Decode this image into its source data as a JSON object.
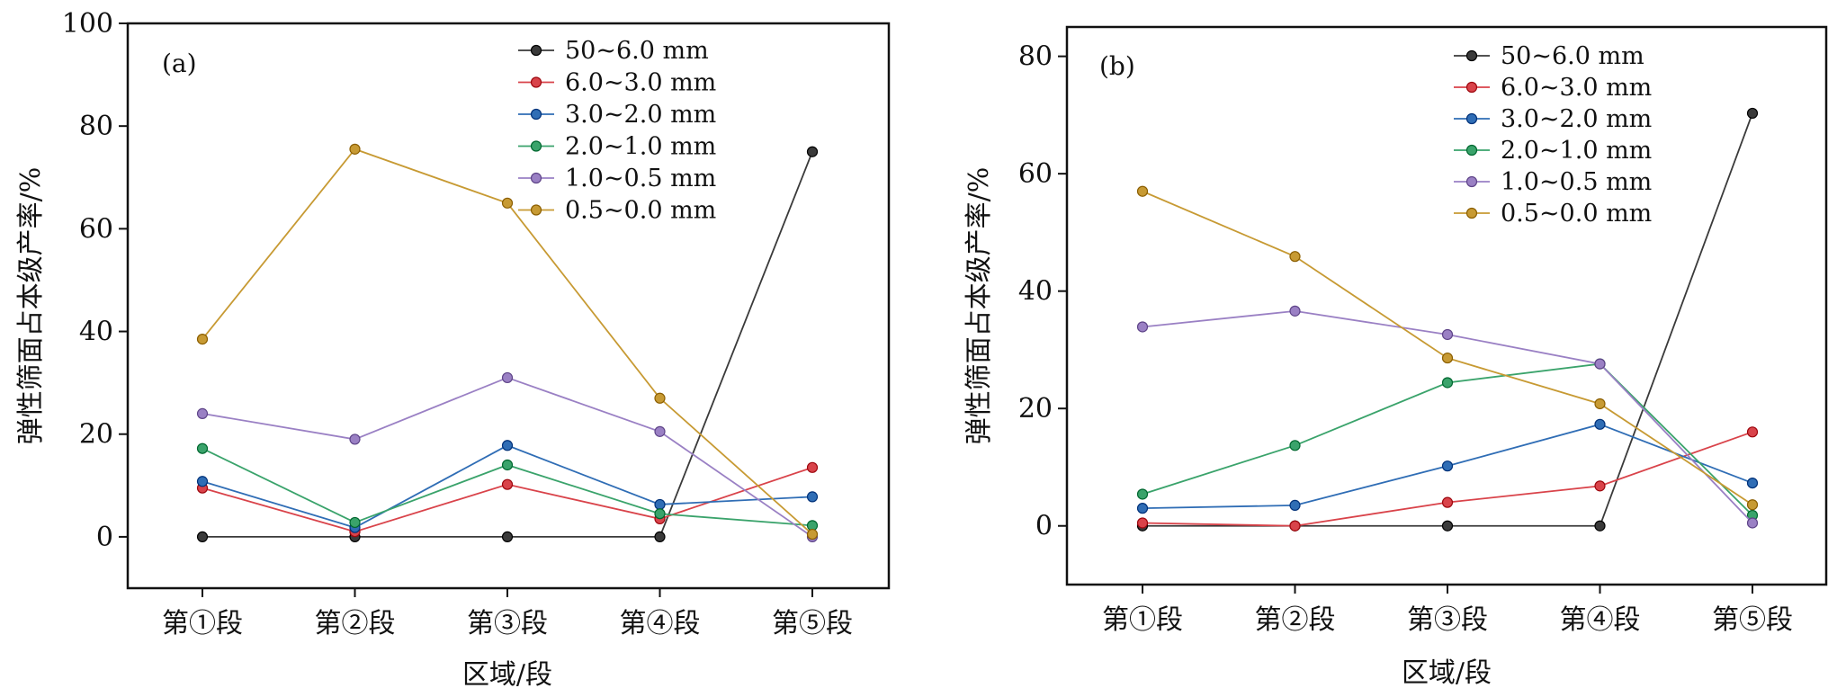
{
  "chart_data": [
    {
      "type": "line",
      "panel_label": "(a)",
      "xlabel": "区域/段",
      "ylabel": "弹性筛面占本级产率/%",
      "categories": [
        "第①段",
        "第②段",
        "第③段",
        "第④段",
        "第⑤段"
      ],
      "ylim": [
        -10,
        100
      ],
      "yticks": [
        0,
        20,
        40,
        60,
        80,
        100
      ],
      "legend_position": "top-right",
      "series": [
        {
          "name": "50~6.0 mm",
          "color": "#3a3a3a",
          "values": [
            0,
            0,
            0,
            0,
            75
          ]
        },
        {
          "name": "6.0~3.0 mm",
          "color": "#d9434a",
          "values": [
            9.5,
            1,
            10.2,
            3.5,
            13.5
          ]
        },
        {
          "name": "3.0~2.0 mm",
          "color": "#2f6db5",
          "values": [
            10.8,
            1.8,
            17.8,
            6.3,
            7.8
          ]
        },
        {
          "name": "2.0~1.0 mm",
          "color": "#3aa36b",
          "values": [
            17.2,
            2.8,
            14,
            4.5,
            2.2
          ]
        },
        {
          "name": "1.0~0.5 mm",
          "color": "#9a80c4",
          "values": [
            24,
            19,
            31,
            20.5,
            0
          ]
        },
        {
          "name": "0.5~0.0 mm",
          "color": "#c79a33",
          "values": [
            38.5,
            75.5,
            65,
            27,
            0.5
          ]
        }
      ]
    },
    {
      "type": "line",
      "panel_label": "(b)",
      "xlabel": "区域/段",
      "ylabel": "弹性筛面占本级产率/%",
      "categories": [
        "第①段",
        "第②段",
        "第③段",
        "第④段",
        "第⑤段"
      ],
      "ylim": [
        -10,
        85
      ],
      "yticks": [
        0,
        20,
        40,
        60,
        80
      ],
      "legend_position": "top-right",
      "series": [
        {
          "name": "50~6.0 mm",
          "color": "#3a3a3a",
          "values": [
            0,
            0,
            0,
            0,
            70.3
          ]
        },
        {
          "name": "6.0~3.0 mm",
          "color": "#d9434a",
          "values": [
            0.5,
            0,
            4,
            6.8,
            16
          ]
        },
        {
          "name": "3.0~2.0 mm",
          "color": "#2f6db5",
          "values": [
            3,
            3.5,
            10.2,
            17.3,
            7.3
          ]
        },
        {
          "name": "2.0~1.0 mm",
          "color": "#3aa36b",
          "values": [
            5.4,
            13.7,
            24.4,
            27.6,
            1.8
          ]
        },
        {
          "name": "1.0~0.5 mm",
          "color": "#9a80c4",
          "values": [
            33.9,
            36.6,
            32.6,
            27.6,
            0.5
          ]
        },
        {
          "name": "0.5~0.0 mm",
          "color": "#c79a33",
          "values": [
            57,
            45.9,
            28.6,
            20.8,
            3.6
          ]
        }
      ]
    }
  ]
}
